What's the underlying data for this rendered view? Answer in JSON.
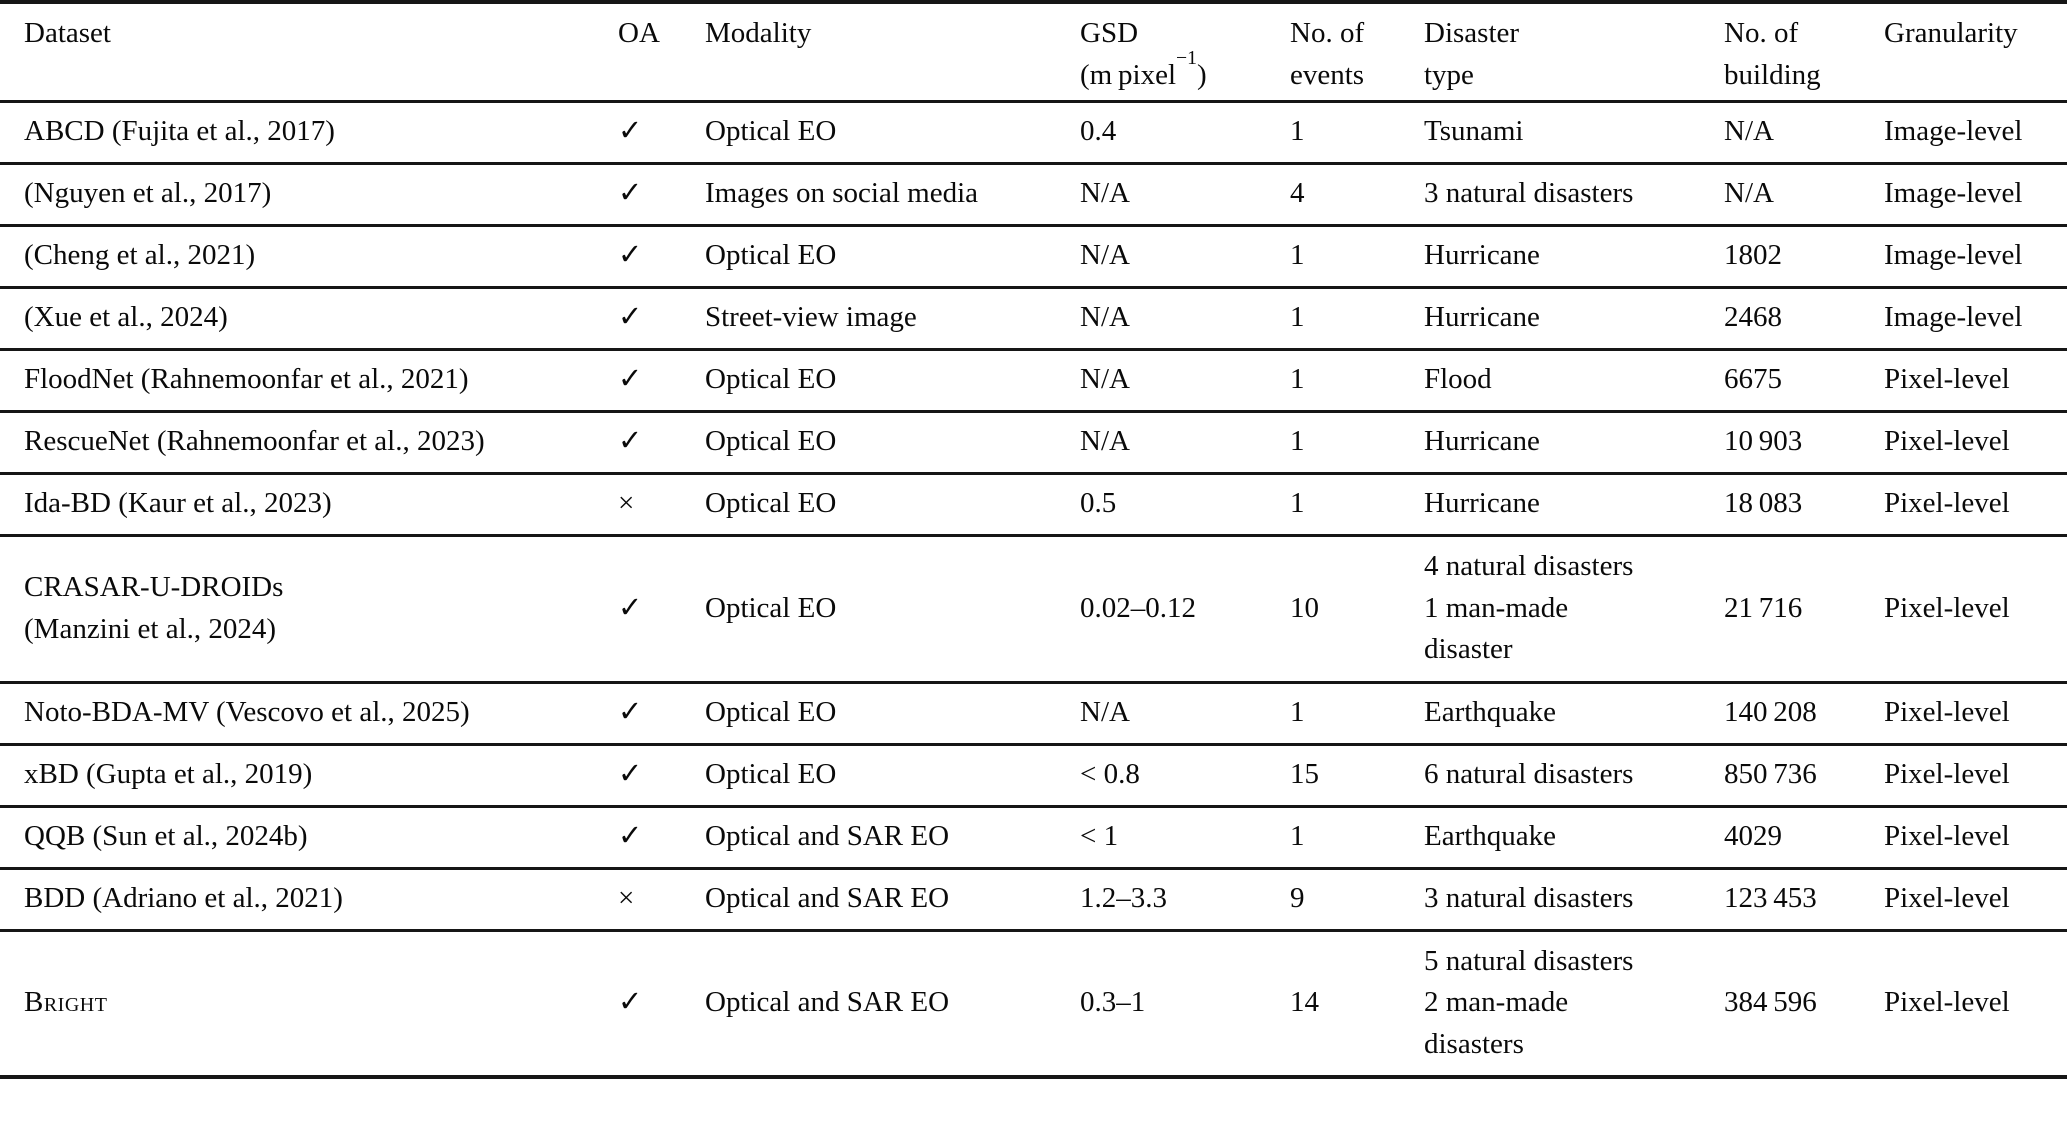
{
  "table": {
    "header": {
      "dataset": "Dataset",
      "oa": "OA",
      "modality": "Modality",
      "gsd_line1": "GSD",
      "gsd_line2_pre": "(m pixel",
      "gsd_sup": "−1",
      "gsd_line2_post": ")",
      "events_line1": "No. of",
      "events_line2": "events",
      "disaster_line1": "Disaster",
      "disaster_line2": "type",
      "building_line1": "No. of",
      "building_line2": "building",
      "granularity": "Granularity"
    },
    "symbols": {
      "check": "✓",
      "cross": "×"
    },
    "rows": [
      {
        "dataset_lines": [
          "ABCD (Fujita et al., 2017)"
        ],
        "dataset_smallcaps": false,
        "oa": "✓",
        "modality": "Optical EO",
        "gsd": "0.4",
        "events": "1",
        "disaster_lines": [
          "Tsunami"
        ],
        "buildings": "N/A",
        "granularity": "Image-level"
      },
      {
        "dataset_lines": [
          "(Nguyen et al., 2017)"
        ],
        "dataset_smallcaps": false,
        "oa": "✓",
        "modality": "Images on social media",
        "gsd": "N/A",
        "events": "4",
        "disaster_lines": [
          "3 natural disasters"
        ],
        "buildings": "N/A",
        "granularity": "Image-level"
      },
      {
        "dataset_lines": [
          "(Cheng et al., 2021)"
        ],
        "dataset_smallcaps": false,
        "oa": "✓",
        "modality": "Optical EO",
        "gsd": "N/A",
        "events": "1",
        "disaster_lines": [
          "Hurricane"
        ],
        "buildings": "1802",
        "granularity": "Image-level"
      },
      {
        "dataset_lines": [
          "(Xue et al., 2024)"
        ],
        "dataset_smallcaps": false,
        "oa": "✓",
        "modality": "Street-view image",
        "gsd": "N/A",
        "events": "1",
        "disaster_lines": [
          "Hurricane"
        ],
        "buildings": "2468",
        "granularity": "Image-level"
      },
      {
        "dataset_lines": [
          "FloodNet (Rahnemoonfar et al., 2021)"
        ],
        "dataset_smallcaps": false,
        "oa": "✓",
        "modality": "Optical EO",
        "gsd": "N/A",
        "events": "1",
        "disaster_lines": [
          "Flood"
        ],
        "buildings": "6675",
        "granularity": "Pixel-level"
      },
      {
        "dataset_lines": [
          "RescueNet (Rahnemoonfar et al., 2023)"
        ],
        "dataset_smallcaps": false,
        "oa": "✓",
        "modality": "Optical EO",
        "gsd": "N/A",
        "events": "1",
        "disaster_lines": [
          "Hurricane"
        ],
        "buildings": "10 903",
        "granularity": "Pixel-level"
      },
      {
        "dataset_lines": [
          "Ida-BD (Kaur et al., 2023)"
        ],
        "dataset_smallcaps": false,
        "oa": "×",
        "modality": "Optical EO",
        "gsd": "0.5",
        "events": "1",
        "disaster_lines": [
          "Hurricane"
        ],
        "buildings": "18 083",
        "granularity": "Pixel-level"
      },
      {
        "dataset_lines": [
          "CRASAR-U-DROIDs",
          "(Manzini et al., 2024)"
        ],
        "dataset_smallcaps": false,
        "oa": "✓",
        "modality": "Optical EO",
        "gsd": "0.02–0.12",
        "events": "10",
        "disaster_lines": [
          "4 natural disasters",
          "1 man-made",
          "disaster"
        ],
        "buildings": "21 716",
        "granularity": "Pixel-level"
      },
      {
        "dataset_lines": [
          "Noto-BDA-MV (Vescovo et al., 2025)"
        ],
        "dataset_smallcaps": false,
        "oa": "✓",
        "modality": "Optical EO",
        "gsd": "N/A",
        "events": "1",
        "disaster_lines": [
          "Earthquake"
        ],
        "buildings": "140 208",
        "granularity": "Pixel-level"
      },
      {
        "dataset_lines": [
          "xBD (Gupta et al., 2019)"
        ],
        "dataset_smallcaps": false,
        "oa": "✓",
        "modality": "Optical EO",
        "gsd": "< 0.8",
        "events": "15",
        "disaster_lines": [
          "6 natural disasters"
        ],
        "buildings": "850 736",
        "granularity": "Pixel-level"
      },
      {
        "dataset_lines": [
          "QQB (Sun et al., 2024b)"
        ],
        "dataset_smallcaps": false,
        "oa": "✓",
        "modality": "Optical and SAR EO",
        "gsd": "< 1",
        "events": "1",
        "disaster_lines": [
          "Earthquake"
        ],
        "buildings": "4029",
        "granularity": "Pixel-level"
      },
      {
        "dataset_lines": [
          "BDD (Adriano et al., 2021)"
        ],
        "dataset_smallcaps": false,
        "oa": "×",
        "modality": "Optical and SAR EO",
        "gsd": "1.2–3.3",
        "events": "9",
        "disaster_lines": [
          "3 natural disasters"
        ],
        "buildings": "123 453",
        "granularity": "Pixel-level"
      },
      {
        "dataset_lines": [
          "Bright"
        ],
        "dataset_smallcaps": true,
        "oa": "✓",
        "modality": "Optical and SAR EO",
        "gsd": "0.3–1",
        "events": "14",
        "disaster_lines": [
          "5 natural disasters",
          "2 man-made",
          "disasters"
        ],
        "buildings": "384 596",
        "granularity": "Pixel-level"
      }
    ]
  }
}
